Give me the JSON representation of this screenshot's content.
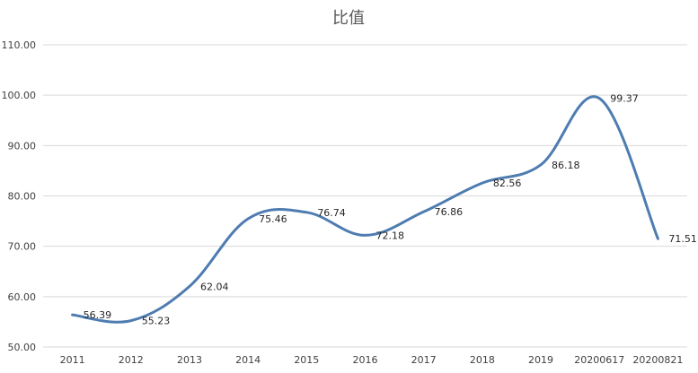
{
  "chart_data": {
    "type": "line",
    "title": "比值",
    "xlabel": "",
    "ylabel": "",
    "categories": [
      "2011",
      "2012",
      "2013",
      "2014",
      "2015",
      "2016",
      "2017",
      "2018",
      "2019",
      "20200617",
      "20200821"
    ],
    "series": [
      {
        "values": [
          56.39,
          55.23,
          62.04,
          75.46,
          76.74,
          72.18,
          76.86,
          82.56,
          86.18,
          99.37,
          71.51
        ]
      }
    ],
    "data_labels": [
      "56.39",
      "55.23",
      "62.04",
      "75.46",
      "76.74",
      "72.18",
      "76.86",
      "82.56",
      "86.18",
      "99.37",
      "71.51"
    ],
    "ylim": [
      50,
      110
    ],
    "yticks": [
      "50.00",
      "60.00",
      "70.00",
      "80.00",
      "90.00",
      "100.00",
      "110.00"
    ],
    "grid": true,
    "legend": "none",
    "colors": {
      "line": "#4e7cb1",
      "grid": "#d9d9d9"
    }
  }
}
